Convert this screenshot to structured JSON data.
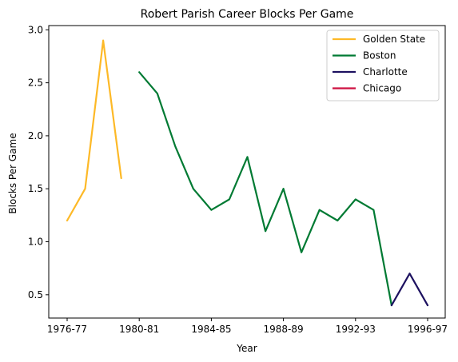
{
  "chart_data": {
    "type": "line",
    "title": "Robert Parish Career Blocks Per Game",
    "xlabel": "Year",
    "ylabel": "Blocks Per Game",
    "x": [
      "1976-77",
      "1977-78",
      "1978-79",
      "1979-80",
      "1980-81",
      "1981-82",
      "1982-83",
      "1983-84",
      "1984-85",
      "1985-86",
      "1986-87",
      "1987-88",
      "1988-89",
      "1989-90",
      "1990-91",
      "1991-92",
      "1992-93",
      "1993-94",
      "1994-95",
      "1995-96",
      "1996-97"
    ],
    "x_ticks": [
      "1976-77",
      "1980-81",
      "1984-85",
      "1988-89",
      "1992-93",
      "1996-97"
    ],
    "y_ticks": [
      0.5,
      1.0,
      1.5,
      2.0,
      2.5,
      3.0
    ],
    "ylim": [
      0.28,
      3.04
    ],
    "grid": false,
    "legend_position": "top-right",
    "series": [
      {
        "name": "Golden State",
        "color": "#FDB927",
        "x": [
          "1976-77",
          "1977-78",
          "1978-79",
          "1979-80"
        ],
        "values": [
          1.2,
          1.5,
          2.9,
          1.6
        ]
      },
      {
        "name": "Boston",
        "color": "#007A33",
        "x": [
          "1980-81",
          "1981-82",
          "1982-83",
          "1983-84",
          "1984-85",
          "1985-86",
          "1986-87",
          "1987-88",
          "1988-89",
          "1989-90",
          "1990-91",
          "1991-92",
          "1992-93",
          "1993-94",
          "1994-95"
        ],
        "values": [
          2.6,
          2.4,
          1.9,
          1.5,
          1.3,
          1.4,
          1.8,
          1.1,
          1.5,
          0.9,
          1.3,
          1.2,
          1.4,
          1.3,
          0.4
        ]
      },
      {
        "name": "Charlotte",
        "color": "#1D1160",
        "x": [
          "1994-95",
          "1995-96",
          "1996-97"
        ],
        "values": [
          0.4,
          0.7,
          0.4
        ]
      },
      {
        "name": "Chicago",
        "color": "#CE1141",
        "x": [
          "1996-97"
        ],
        "values": [
          0.4
        ]
      }
    ]
  }
}
